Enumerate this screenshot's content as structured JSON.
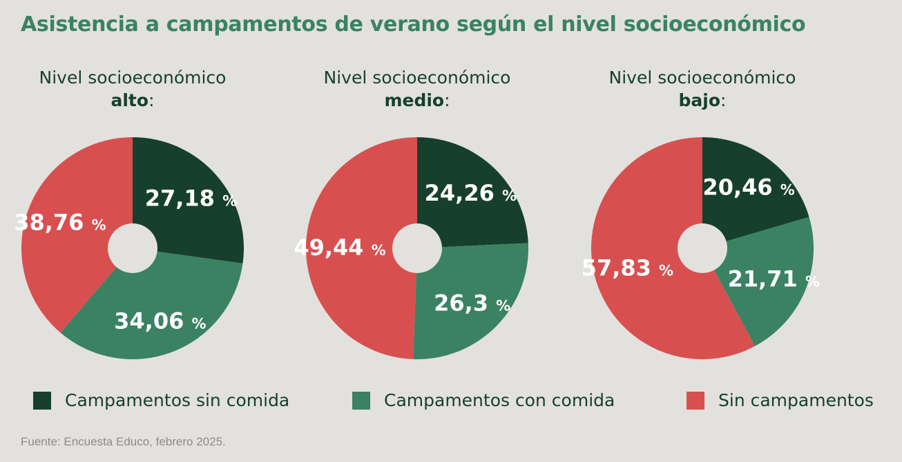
{
  "title": "Asistencia a campamentos de verano según el nivel socioeconómico",
  "chart_data": {
    "type": "pie",
    "series_names": [
      "Campamentos sin comida",
      "Campamentos con comida",
      "Sin campamentos"
    ],
    "colors": [
      "#173f2e",
      "#3a8262",
      "#d84f50"
    ],
    "unit": "%",
    "charts": [
      {
        "header_prefix": "Nivel socioeconómico",
        "header_bold": "alto",
        "header_suffix": ":",
        "values": [
          27.18,
          34.06,
          38.76
        ],
        "labels": [
          "27,18",
          "34,06",
          "38,76"
        ]
      },
      {
        "header_prefix": "Nivel socioeconómico",
        "header_bold": "medio",
        "header_suffix": ":",
        "values": [
          24.26,
          26.3,
          49.44
        ],
        "labels": [
          "24,26",
          "26,3",
          "49,44"
        ]
      },
      {
        "header_prefix": "Nivel socioeconómico",
        "header_bold": "bajo",
        "header_suffix": ":",
        "values": [
          20.46,
          21.71,
          57.83
        ],
        "labels": [
          "20,46",
          "21,71",
          "57,83"
        ]
      }
    ]
  },
  "legend": [
    {
      "label": "Campamentos sin comida",
      "color": "#173f2e"
    },
    {
      "label": "Campamentos con comida",
      "color": "#3a8262"
    },
    {
      "label": "Sin campamentos",
      "color": "#d84f50"
    }
  ],
  "source": "Fuente: Encuesta Educo, febrero 2025."
}
